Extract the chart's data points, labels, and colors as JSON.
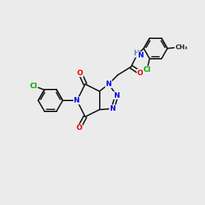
{
  "bg_color": "#ebebeb",
  "bond_color": "#1a1a1a",
  "bond_width": 1.4,
  "atom_colors": {
    "N": "#0000ee",
    "O": "#ee0000",
    "Cl": "#00aa00",
    "C": "#1a1a1a",
    "H": "#5588aa"
  },
  "font_size": 7.5,
  "fig_size": [
    3.0,
    3.0
  ],
  "dpi": 100
}
